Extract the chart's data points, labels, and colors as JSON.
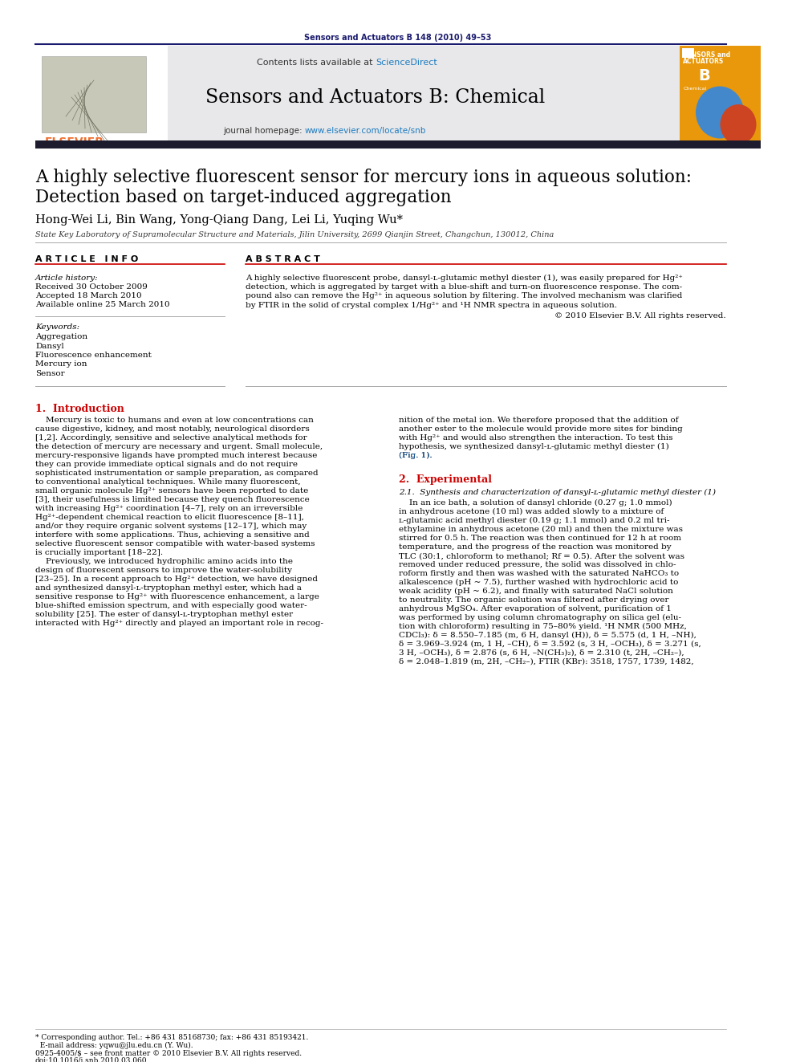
{
  "journal_ref": "Sensors and Actuators B 148 (2010) 49–53",
  "journal_name": "Sensors and Actuators B: Chemical",
  "title_line1": "A highly selective fluorescent sensor for mercury ions in aqueous solution:",
  "title_line2": "Detection based on target-induced aggregation",
  "authors": "Hong-Wei Li, Bin Wang, Yong-Qiang Dang, Lei Li, Yuqing Wu*",
  "affiliation": "State Key Laboratory of Supramolecular Structure and Materials, Jilin University, 2699 Qianjin Street, Changchun, 130012, China",
  "article_info_header": "A R T I C L E   I N F O",
  "abstract_header": "A B S T R A C T",
  "article_history_label": "Article history:",
  "received": "Received 30 October 2009",
  "accepted": "Accepted 18 March 2010",
  "available": "Available online 25 March 2010",
  "keywords_label": "Keywords:",
  "keywords": [
    "Aggregation",
    "Dansyl",
    "Fluorescence enhancement",
    "Mercury ion",
    "Sensor"
  ],
  "abstract_lines": [
    "A highly selective fluorescent probe, dansyl-ʟ-glutamic methyl diester (1), was easily prepared for Hg²⁺",
    "detection, which is aggregated by target with a blue-shift and turn-on fluorescence response. The com-",
    "pound also can remove the Hg²⁺ in aqueous solution by filtering. The involved mechanism was clarified",
    "by FTIR in the solid of crystal complex 1/Hg²⁺ and ¹H NMR spectra in aqueous solution."
  ],
  "copyright": "© 2010 Elsevier B.V. All rights reserved.",
  "section1_header": "1.  Introduction",
  "intro_col1": [
    "    Mercury is toxic to humans and even at low concentrations can",
    "cause digestive, kidney, and most notably, neurological disorders",
    "[1,2]. Accordingly, sensitive and selective analytical methods for",
    "the detection of mercury are necessary and urgent. Small molecule,",
    "mercury-responsive ligands have prompted much interest because",
    "they can provide immediate optical signals and do not require",
    "sophisticated instrumentation or sample preparation, as compared",
    "to conventional analytical techniques. While many fluorescent,",
    "small organic molecule Hg²⁺ sensors have been reported to date",
    "[3], their usefulness is limited because they quench fluorescence",
    "with increasing Hg²⁺ coordination [4–7], rely on an irreversible",
    "Hg²⁺-dependent chemical reaction to elicit fluorescence [8–11],",
    "and/or they require organic solvent systems [12–17], which may",
    "interfere with some applications. Thus, achieving a sensitive and",
    "selective fluorescent sensor compatible with water-based systems",
    "is crucially important [18–22].",
    "    Previously, we introduced hydrophilic amino acids into the",
    "design of fluorescent sensors to improve the water-solubility",
    "[23–25]. In a recent approach to Hg²⁺ detection, we have designed",
    "and synthesized dansyl-ʟ-tryptophan methyl ester, which had a",
    "sensitive response to Hg²⁺ with fluorescence enhancement, a large",
    "blue-shifted emission spectrum, and with especially good water-",
    "solubility [25]. The ester of dansyl-ʟ-tryptophan methyl ester",
    "interacted with Hg²⁺ directly and played an important role in recog-"
  ],
  "intro_col2": [
    "nition of the metal ion. We therefore proposed that the addition of",
    "another ester to the molecule would provide more sites for binding",
    "with Hg²⁺ and would also strengthen the interaction. To test this",
    "hypothesis, we synthesized dansyl-ʟ-glutamic methyl diester (1)",
    "(Fig. 1)."
  ],
  "section2_header": "2.  Experimental",
  "section2_1_header": "2.1.  Synthesis and characterization of dansyl-ʟ-glutamic methyl diester (1)",
  "section2_1_lines": [
    "    In an ice bath, a solution of dansyl chloride (0.27 g; 1.0 mmol)",
    "in anhydrous acetone (10 ml) was added slowly to a mixture of",
    "ʟ-glutamic acid methyl diester (0.19 g; 1.1 mmol) and 0.2 ml tri-",
    "ethylamine in anhydrous acetone (20 ml) and then the mixture was",
    "stirred for 0.5 h. The reaction was then continued for 12 h at room",
    "temperature, and the progress of the reaction was monitored by",
    "TLC (30:1, chloroform to methanol; Rf = 0.5). After the solvent was",
    "removed under reduced pressure, the solid was dissolved in chlo-",
    "roform firstly and then was washed with the saturated NaHCO₃ to",
    "alkalescence (pH ~ 7.5), further washed with hydrochloric acid to",
    "weak acidity (pH ~ 6.2), and finally with saturated NaCl solution",
    "to neutrality. The organic solution was filtered after drying over",
    "anhydrous MgSO₄. After evaporation of solvent, purification of 1",
    "was performed by using column chromatography on silica gel (elu-",
    "tion with chloroform) resulting in 75–80% yield. ¹H NMR (500 MHz,",
    "CDCl₃): δ = 8.550–7.185 (m, 6 H, dansyl (H)), δ = 5.575 (d, 1 H, –NH),",
    "δ = 3.969–3.924 (m, 1 H, –CH), δ = 3.592 (s, 3 H, –OCH₃), δ = 3.271 (s,",
    "3 H, –OCH₃), δ = 2.876 (s, 6 H, –N(CH₃)₂), δ = 2.310 (t, 2H, –CH₂–),",
    "δ = 2.048–1.819 (m, 2H, –CH₂–), FTIR (KBr): 3518, 1757, 1739, 1482,"
  ],
  "footer_note1": "* Corresponding author. Tel.: +86 431 85168730; fax: +86 431 85193421.",
  "footer_note2": "  E-mail address: yqwu@jlu.edu.cn (Y. Wu).",
  "footer_copy1": "0925-4005/$ – see front matter © 2010 Elsevier B.V. All rights reserved.",
  "footer_copy2": "doi:10.1016/j.snb.2010.03.060",
  "header_bg": "#e8e8ea",
  "navy": "#1a1a6e",
  "dark_bar": "#1c1c2e",
  "orange": "#f07030",
  "red": "#cc0000",
  "blue_link": "#1a5fa8",
  "scidir_blue": "#1a7abf",
  "bg": "#ffffff",
  "black": "#000000",
  "gray": "#888888",
  "dark_gray": "#444444"
}
